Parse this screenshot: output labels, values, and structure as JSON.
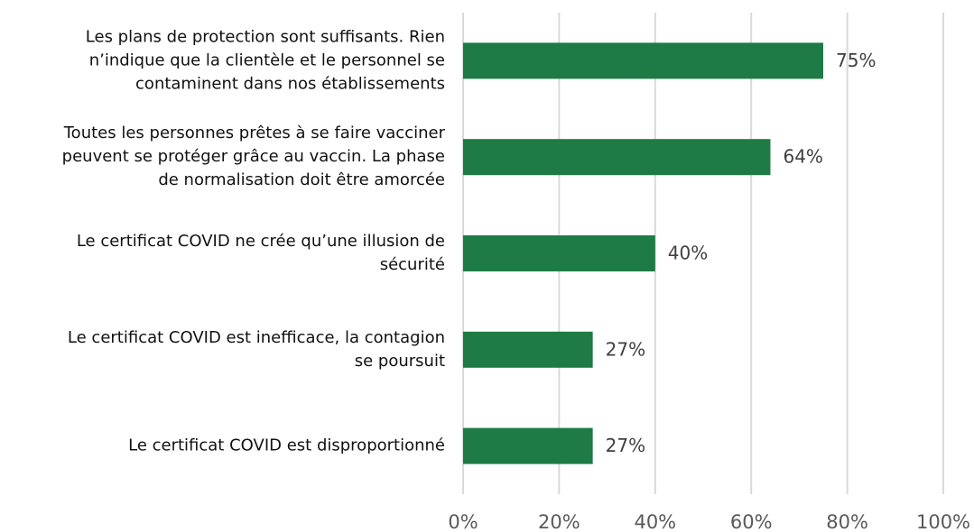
{
  "chart_data": {
    "type": "bar",
    "orientation": "horizontal",
    "categories": [
      [
        "Les plans de protection sont suffisants. Rien",
        "n’indique que la clientèle et le personnel se",
        "contaminent dans nos établissements"
      ],
      [
        "Toutes les personnes prêtes à se faire vacciner",
        "peuvent se protéger grâce au vaccin. La phase",
        "de normalisation doit être amorcée"
      ],
      [
        "Le certificat COVID ne crée qu’une illusion de",
        "sécurité"
      ],
      [
        "Le certificat COVID est inefficace, la contagion",
        "se poursuit"
      ],
      [
        "Le certificat COVID est disproportionné"
      ]
    ],
    "values": [
      75,
      64,
      40,
      27,
      27
    ],
    "value_labels": [
      "75%",
      "64%",
      "40%",
      "27%",
      "27%"
    ],
    "color": "#1e7b45",
    "xlim": [
      0,
      100
    ],
    "xticks": [
      {
        "value": 0,
        "label": "0%"
      },
      {
        "value": 20,
        "label": "20%"
      },
      {
        "value": 40,
        "label": "40%"
      },
      {
        "value": 60,
        "label": "60%"
      },
      {
        "value": 80,
        "label": "80%"
      },
      {
        "value": 100,
        "label": "100%"
      }
    ],
    "grid": true
  }
}
